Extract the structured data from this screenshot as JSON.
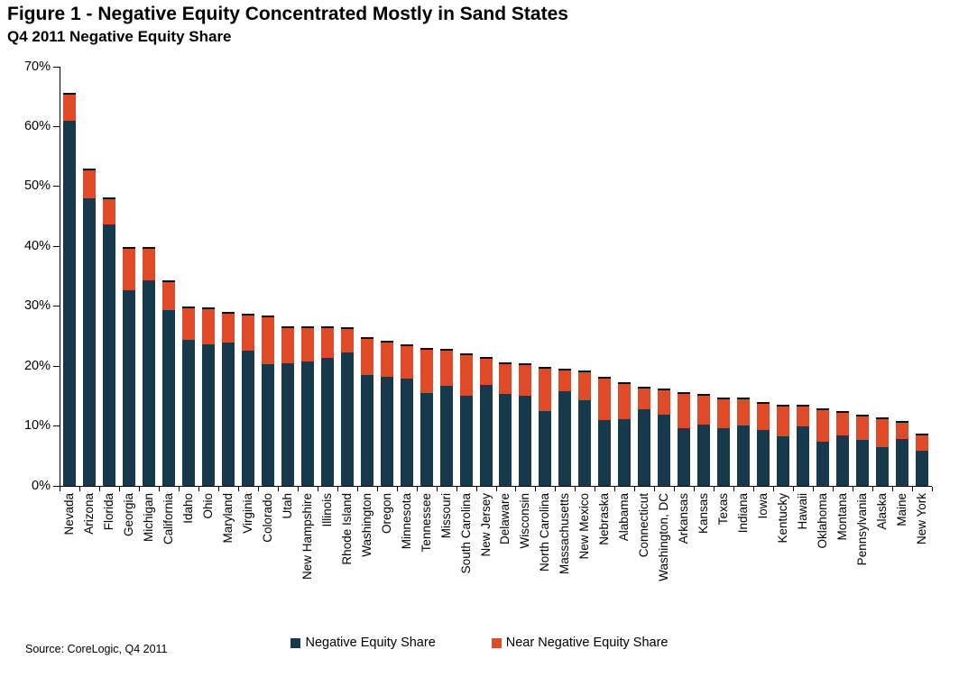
{
  "title": "Figure 1 - Negative Equity Concentrated Mostly in Sand States",
  "subtitle": "Q4 2011 Negative Equity Share",
  "source": "Source: CoreLogic, Q4 2011",
  "colors": {
    "negative_equity": "#17394C",
    "near_negative_equity": "#DF4A28",
    "segment_cap": "#0E0E0E",
    "axis": "#000000"
  },
  "chart_data": {
    "type": "bar",
    "stacked": true,
    "grid": false,
    "legend_position": "bottom",
    "title": "Figure 1 - Negative Equity Concentrated Mostly in Sand States",
    "subtitle": "Q4 2011 Negative Equity Share",
    "xlabel": "",
    "ylabel": "",
    "ylim": [
      0,
      70
    ],
    "ytick_step": 10,
    "ytick_labels": [
      "0%",
      "10%",
      "20%",
      "30%",
      "40%",
      "50%",
      "60%",
      "70%"
    ],
    "categories": [
      "Nevada",
      "Arizona",
      "Florida",
      "Georgia",
      "Michigan",
      "California",
      "Idaho",
      "Ohio",
      "Maryland",
      "Virginia",
      "Colorado",
      "Utah",
      "New Hampshire",
      "Illinois",
      "Rhode Island",
      "Washington",
      "Oregon",
      "Minnesota",
      "Tennessee",
      "Missouri",
      "South Carolina",
      "New Jersey",
      "Delaware",
      "Wisconsin",
      "North Carolina",
      "Massachusetts",
      "New Mexico",
      "Nebraska",
      "Alabama",
      "Connecticut",
      "Washington, DC",
      "Arkansas",
      "Kansas",
      "Texas",
      "Indiana",
      "Iowa",
      "Kentucky",
      "Hawaii",
      "Oklahoma",
      "Montana",
      "Pennsylvania",
      "Alaska",
      "Maine",
      "New York"
    ],
    "series": [
      {
        "name": "Negative Equity Share",
        "color": "#17394C",
        "values": [
          61.0,
          48.1,
          43.7,
          32.7,
          34.4,
          29.3,
          24.5,
          23.6,
          24.0,
          22.6,
          20.3,
          20.5,
          20.7,
          21.3,
          22.3,
          18.5,
          18.2,
          18.0,
          15.6,
          16.7,
          15.1,
          16.9,
          15.3,
          15.1,
          12.4,
          15.7,
          14.2,
          10.9,
          11.2,
          12.9,
          11.9,
          9.6,
          10.2,
          9.7,
          10.1,
          9.3,
          8.3,
          9.9,
          7.4,
          8.4,
          7.7,
          6.5,
          7.8,
          5.8
        ]
      },
      {
        "name": "Near Negative Equity Share",
        "color": "#DF4A28",
        "values": [
          4.6,
          4.9,
          4.5,
          7.2,
          5.5,
          5.0,
          5.5,
          6.2,
          5.1,
          6.2,
          8.1,
          6.2,
          5.9,
          5.3,
          4.2,
          6.3,
          6.0,
          5.7,
          7.5,
          6.2,
          7.0,
          4.6,
          5.3,
          5.4,
          7.4,
          3.8,
          5.0,
          7.3,
          6.1,
          3.7,
          4.4,
          6.0,
          5.1,
          5.1,
          4.7,
          4.7,
          5.3,
          3.6,
          5.6,
          4.1,
          4.2,
          4.9,
          3.0,
          2.9
        ]
      }
    ]
  }
}
